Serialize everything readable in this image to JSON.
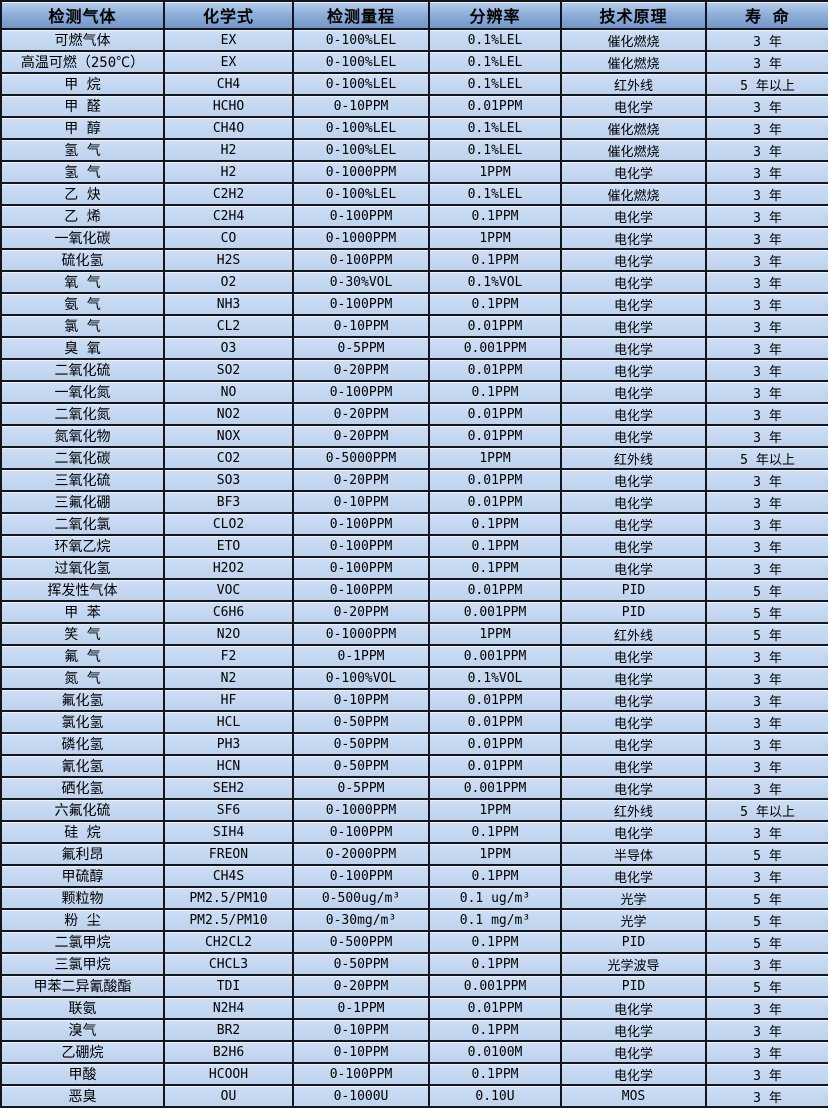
{
  "chart_data": {
    "type": "table",
    "title": "",
    "columns": [
      {
        "key": "gas",
        "label": "检测气体"
      },
      {
        "key": "formula",
        "label": "化学式"
      },
      {
        "key": "range",
        "label": "检测量程"
      },
      {
        "key": "resolution",
        "label": "分辨率"
      },
      {
        "key": "principle",
        "label": "技术原理"
      },
      {
        "key": "life",
        "label": "寿 命"
      }
    ],
    "rows": [
      [
        "可燃气体",
        "EX",
        "0-100%LEL",
        "0.1%LEL",
        "催化燃烧",
        "3 年"
      ],
      [
        "高温可燃（250℃）",
        "EX",
        "0-100%LEL",
        "0.1%LEL",
        "催化燃烧",
        "3 年"
      ],
      [
        "甲 烷",
        "CH4",
        "0-100%LEL",
        "0.1%LEL",
        "红外线",
        "5 年以上"
      ],
      [
        "甲 醛",
        "HCHO",
        "0-10PPM",
        "0.01PPM",
        "电化学",
        "3 年"
      ],
      [
        "甲 醇",
        "CH4O",
        "0-100%LEL",
        "0.1%LEL",
        "催化燃烧",
        "3 年"
      ],
      [
        "氢 气",
        "H2",
        "0-100%LEL",
        "0.1%LEL",
        "催化燃烧",
        "3 年"
      ],
      [
        "氢 气",
        "H2",
        "0-1000PPM",
        "1PPM",
        "电化学",
        "3 年"
      ],
      [
        "乙 炔",
        "C2H2",
        "0-100%LEL",
        "0.1%LEL",
        "催化燃烧",
        "3 年"
      ],
      [
        "乙 烯",
        "C2H4",
        "0-100PPM",
        "0.1PPM",
        "电化学",
        "3 年"
      ],
      [
        "一氧化碳",
        "CO",
        "0-1000PPM",
        "1PPM",
        "电化学",
        "3 年"
      ],
      [
        "硫化氢",
        "H2S",
        "0-100PPM",
        "0.1PPM",
        "电化学",
        "3 年"
      ],
      [
        "氧 气",
        "O2",
        "0-30%VOL",
        "0.1%VOL",
        "电化学",
        "3 年"
      ],
      [
        "氨 气",
        "NH3",
        "0-100PPM",
        "0.1PPM",
        "电化学",
        "3 年"
      ],
      [
        "氯 气",
        "CL2",
        "0-10PPM",
        "0.01PPM",
        "电化学",
        "3 年"
      ],
      [
        "臭 氧",
        "O3",
        "0-5PPM",
        "0.001PPM",
        "电化学",
        "3 年"
      ],
      [
        "二氧化硫",
        "SO2",
        "0-20PPM",
        "0.01PPM",
        "电化学",
        "3 年"
      ],
      [
        "一氧化氮",
        "NO",
        "0-100PPM",
        "0.1PPM",
        "电化学",
        "3 年"
      ],
      [
        "二氧化氮",
        "NO2",
        "0-20PPM",
        "0.01PPM",
        "电化学",
        "3 年"
      ],
      [
        "氮氧化物",
        "NOX",
        "0-20PPM",
        "0.01PPM",
        "电化学",
        "3 年"
      ],
      [
        "二氧化碳",
        "CO2",
        "0-5000PPM",
        "1PPM",
        "红外线",
        "5 年以上"
      ],
      [
        "三氧化硫",
        "SO3",
        "0-20PPM",
        "0.01PPM",
        "电化学",
        "3 年"
      ],
      [
        "三氟化硼",
        "BF3",
        "0-10PPM",
        "0.01PPM",
        "电化学",
        "3 年"
      ],
      [
        "二氧化氯",
        "CLO2",
        "0-100PPM",
        "0.1PPM",
        "电化学",
        "3 年"
      ],
      [
        "环氧乙烷",
        "ETO",
        "0-100PPM",
        "0.1PPM",
        "电化学",
        "3 年"
      ],
      [
        "过氧化氢",
        "H2O2",
        "0-100PPM",
        "0.1PPM",
        "电化学",
        "3 年"
      ],
      [
        "挥发性气体",
        "VOC",
        "0-100PPM",
        "0.01PPM",
        "PID",
        "5 年"
      ],
      [
        "甲 苯",
        "C6H6",
        "0-20PPM",
        "0.001PPM",
        "PID",
        "5 年"
      ],
      [
        "笑 气",
        "N2O",
        "0-1000PPM",
        "1PPM",
        "红外线",
        "5 年"
      ],
      [
        "氟 气",
        "F2",
        "0-1PPM",
        "0.001PPM",
        "电化学",
        "3 年"
      ],
      [
        "氮 气",
        "N2",
        "0-100%VOL",
        "0.1%VOL",
        "电化学",
        "3 年"
      ],
      [
        "氟化氢",
        "HF",
        "0-10PPM",
        "0.01PPM",
        "电化学",
        "3 年"
      ],
      [
        "氯化氢",
        "HCL",
        "0-50PPM",
        "0.01PPM",
        "电化学",
        "3 年"
      ],
      [
        "磷化氢",
        "PH3",
        "0-50PPM",
        "0.01PPM",
        "电化学",
        "3 年"
      ],
      [
        "氰化氢",
        "HCN",
        "0-50PPM",
        "0.01PPM",
        "电化学",
        "3 年"
      ],
      [
        "硒化氢",
        "SEH2",
        "0-5PPM",
        "0.001PPM",
        "电化学",
        "3 年"
      ],
      [
        "六氟化硫",
        "SF6",
        "0-1000PPM",
        "1PPM",
        "红外线",
        "5 年以上"
      ],
      [
        "硅 烷",
        "SIH4",
        "0-100PPM",
        "0.1PPM",
        "电化学",
        "3 年"
      ],
      [
        "氟利昂",
        "FREON",
        "0-2000PPM",
        "1PPM",
        "半导体",
        "5 年"
      ],
      [
        "甲硫醇",
        "CH4S",
        "0-100PPM",
        "0.1PPM",
        "电化学",
        "3 年"
      ],
      [
        "颗粒物",
        "PM2.5/PM10",
        "0-500ug/m³",
        "0.1 ug/m³",
        "光学",
        "5 年"
      ],
      [
        "粉 尘",
        "PM2.5/PM10",
        "0-30mg/m³",
        "0.1 mg/m³",
        "光学",
        "5 年"
      ],
      [
        "二氯甲烷",
        "CH2CL2",
        "0-500PPM",
        "0.1PPM",
        "PID",
        "5 年"
      ],
      [
        "三氯甲烷",
        "CHCL3",
        "0-50PPM",
        "0.1PPM",
        "光学波导",
        "3 年"
      ],
      [
        "甲苯二异氰酸酯",
        "TDI",
        "0-20PPM",
        "0.001PPM",
        "PID",
        "5 年"
      ],
      [
        "联氨",
        "N2H4",
        "0-1PPM",
        "0.01PPM",
        "电化学",
        "3 年"
      ],
      [
        "溴气",
        "BR2",
        "0-10PPM",
        "0.1PPM",
        "电化学",
        "3 年"
      ],
      [
        "乙硼烷",
        "B2H6",
        "0-10PPM",
        "0.0100M",
        "电化学",
        "3 年"
      ],
      [
        "甲酸",
        "HCOOH",
        "0-100PPM",
        "0.1PPM",
        "电化学",
        "3 年"
      ],
      [
        "恶臭",
        "OU",
        "0-1000U",
        "0.10U",
        "MOS",
        "3 年"
      ]
    ],
    "layout": {
      "header_text_color": "#000000",
      "header_bg_top": "#b9cfec",
      "header_bg_bottom": "#7396c8",
      "row_bg": "#c5d9f1",
      "border_color": "#14151f",
      "grid": "on"
    }
  }
}
